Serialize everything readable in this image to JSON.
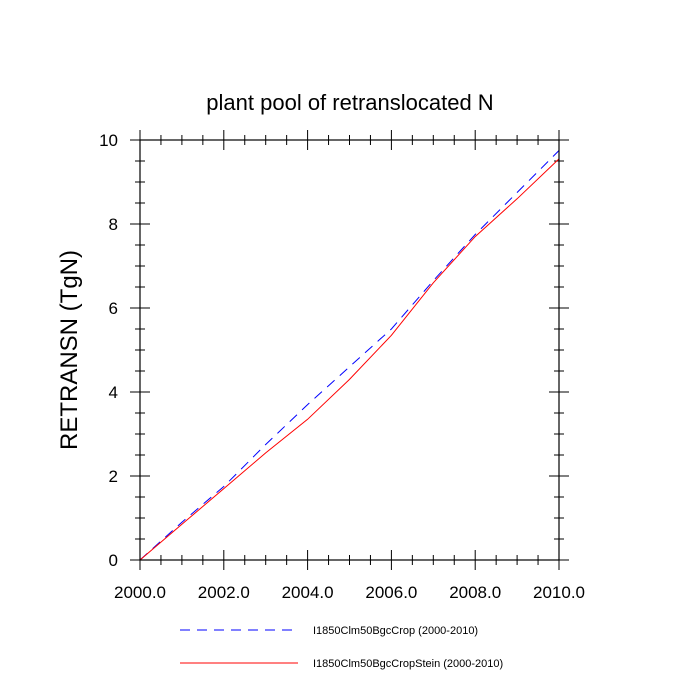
{
  "chart_data": {
    "type": "line",
    "title": "plant pool of retranslocated N",
    "xlabel": "",
    "ylabel": "RETRANSN  (TgN)",
    "xlim": [
      2000,
      2010
    ],
    "ylim": [
      0,
      10
    ],
    "x_ticks": [
      2000,
      2002,
      2004,
      2006,
      2008,
      2010
    ],
    "x_tick_labels": [
      "2000.0",
      "2002.0",
      "2004.0",
      "2006.0",
      "2008.0",
      "2010.0"
    ],
    "y_ticks": [
      0,
      2,
      4,
      6,
      8,
      10
    ],
    "y_tick_labels": [
      "0",
      "2",
      "4",
      "6",
      "8",
      "10"
    ],
    "legend_position": "bottom",
    "x": [
      2000,
      2001,
      2002,
      2003,
      2004,
      2005,
      2006,
      2007,
      2008,
      2009,
      2010
    ],
    "series": [
      {
        "name": "I1850Clm50BgcCrop (2000-2010)",
        "color": "#0000ff",
        "dash": "dashed",
        "values": [
          0.0,
          0.9,
          1.75,
          2.75,
          3.7,
          4.6,
          5.5,
          6.65,
          7.75,
          8.75,
          9.75
        ]
      },
      {
        "name": "I1850Clm50BgcCropStein (2000-2010)",
        "color": "#ff0000",
        "dash": "solid",
        "values": [
          0.0,
          0.85,
          1.7,
          2.55,
          3.35,
          4.3,
          5.35,
          6.6,
          7.7,
          8.6,
          9.55
        ]
      }
    ]
  }
}
